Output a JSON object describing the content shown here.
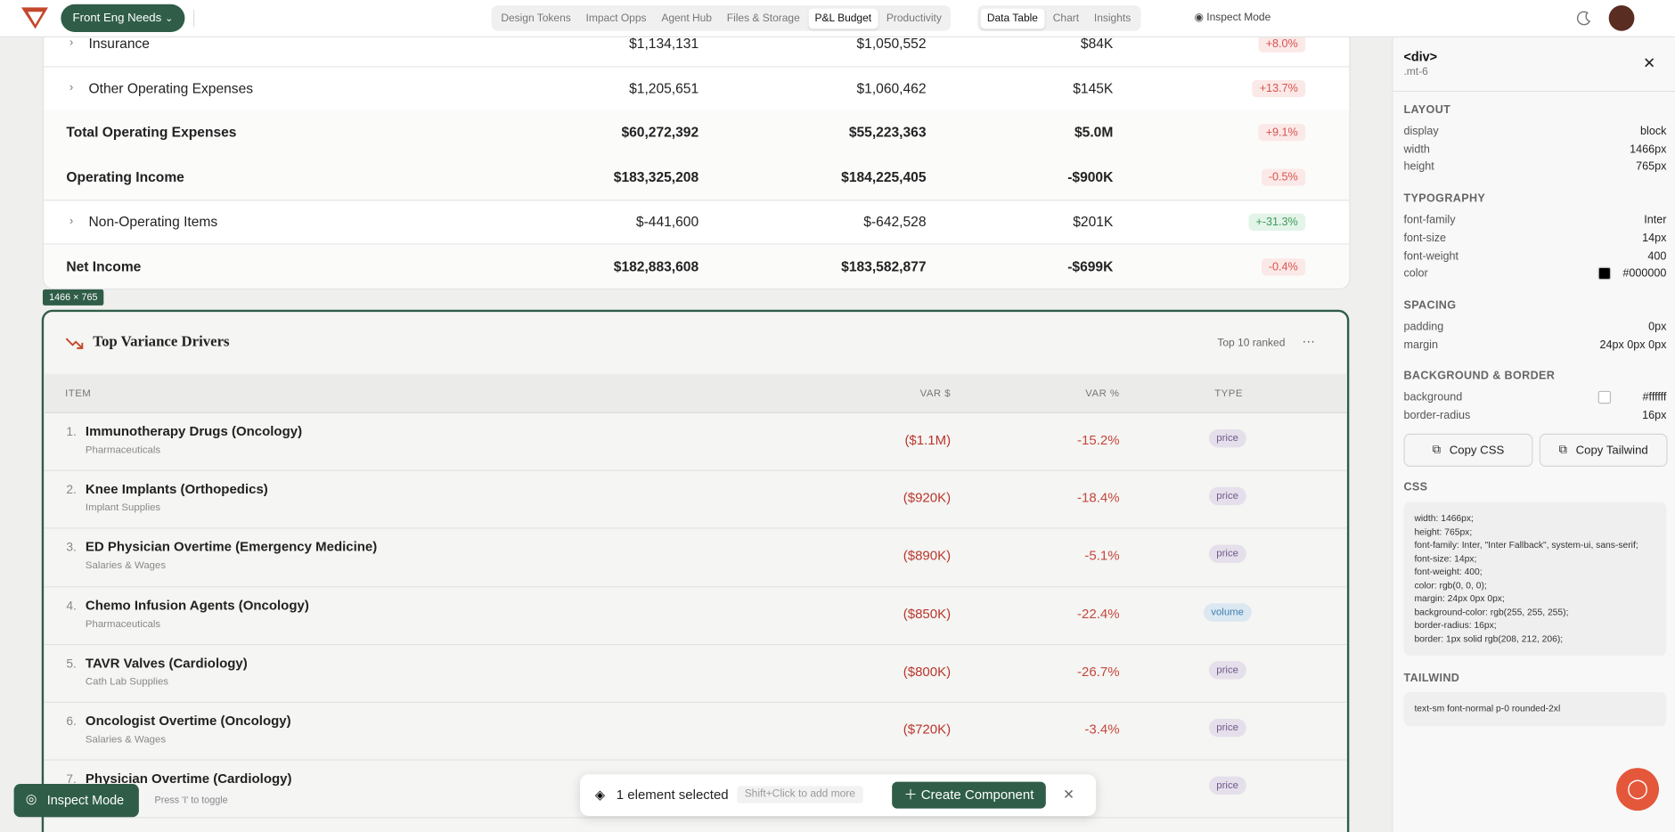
{
  "nav": {
    "brand": "Front Eng Needs",
    "tabs": [
      "Design Tokens",
      "Impact Opps",
      "Agent Hub",
      "Files & Storage",
      "P&L Budget",
      "Productivity"
    ],
    "active_tab": 4,
    "views": [
      "Data Table",
      "Chart",
      "Insights"
    ],
    "active_view": 0,
    "inspect": "Inspect Mode"
  },
  "pl_table": {
    "rows": [
      {
        "label": "Insurance",
        "actual": "$1,134,131",
        "budget": "$1,050,552",
        "variance": "$84K",
        "change": "+8.0%",
        "expandable": true,
        "total": false,
        "badge_color": "#d9534f",
        "badge_bg": "#fbe9e7"
      },
      {
        "label": "Other Operating Expenses",
        "actual": "$1,205,651",
        "budget": "$1,060,462",
        "variance": "$145K",
        "change": "+13.7%",
        "expandable": true,
        "total": false,
        "badge_color": "#d9534f",
        "badge_bg": "#fbe9e7"
      },
      {
        "label": "Total Operating Expenses",
        "actual": "$60,272,392",
        "budget": "$55,223,363",
        "variance": "$5.0M",
        "change": "+9.1%",
        "expandable": false,
        "total": true,
        "badge_color": "#d9534f",
        "badge_bg": "#fbe9e7"
      },
      {
        "label": "Operating Income",
        "actual": "$183,325,208",
        "budget": "$184,225,405",
        "variance": "-$900K",
        "change": "-0.5%",
        "expandable": false,
        "total": true,
        "badge_color": "#d9534f",
        "badge_bg": "#fbe9e7"
      },
      {
        "label": "Non-Operating Items",
        "actual": "$-441,600",
        "budget": "$-642,528",
        "variance": "$201K",
        "change": "+-31.3%",
        "expandable": true,
        "total": false,
        "badge_color": "#3f9a5f",
        "badge_bg": "#e3f4e8"
      },
      {
        "label": "Net Income",
        "actual": "$182,883,608",
        "budget": "$183,582,877",
        "variance": "-$699K",
        "change": "-0.4%",
        "expandable": false,
        "total": true,
        "badge_color": "#d9534f",
        "badge_bg": "#fbe9e7"
      }
    ]
  },
  "size_badge": "1466 × 765",
  "drivers": {
    "title": "Top Variance Drivers",
    "badge": "Top 10 ranked",
    "columns": [
      "ITEM",
      "VAR $",
      "VAR %",
      "TYPE"
    ],
    "rows": [
      {
        "rank": "1.",
        "item": "Immunotherapy Drugs (Oncology)",
        "category": "Pharmaceuticals",
        "var": "($1.1M)",
        "pct": "-15.2%",
        "type": "price",
        "type_color": "#6e5a8c",
        "type_bg": "#e5dfeb"
      },
      {
        "rank": "2.",
        "item": "Knee Implants (Orthopedics)",
        "category": "Implant Supplies",
        "var": "($920K)",
        "pct": "-18.4%",
        "type": "price",
        "type_color": "#6e5a8c",
        "type_bg": "#e5dfeb"
      },
      {
        "rank": "3.",
        "item": "ED Physician Overtime (Emergency Medicine)",
        "category": "Salaries & Wages",
        "var": "($890K)",
        "pct": "-5.1%",
        "type": "price",
        "type_color": "#6e5a8c",
        "type_bg": "#e5dfeb"
      },
      {
        "rank": "4.",
        "item": "Chemo Infusion Agents (Oncology)",
        "category": "Pharmaceuticals",
        "var": "($850K)",
        "pct": "-22.4%",
        "type": "volume",
        "type_color": "#3f7fb0",
        "type_bg": "#dbe8f2"
      },
      {
        "rank": "5.",
        "item": "TAVR Valves (Cardiology)",
        "category": "Cath Lab Supplies",
        "var": "($800K)",
        "pct": "-26.7%",
        "type": "price",
        "type_color": "#6e5a8c",
        "type_bg": "#e5dfeb"
      },
      {
        "rank": "6.",
        "item": "Oncologist Overtime (Oncology)",
        "category": "Salaries & Wages",
        "var": "($720K)",
        "pct": "-3.4%",
        "type": "price",
        "type_color": "#6e5a8c",
        "type_bg": "#e5dfeb"
      },
      {
        "rank": "7.",
        "item": "Physician Overtime (Cardiology)",
        "type": "price",
        "type_color": "#6e5a8c",
        "type_bg": "#e5dfeb"
      }
    ]
  },
  "inspector": {
    "tag": "<div>",
    "class": ".mt-6",
    "sections": [
      {
        "title": "LAYOUT",
        "props": [
          {
            "name": "display",
            "value": "block"
          },
          {
            "name": "width",
            "value": "1466px"
          },
          {
            "name": "height",
            "value": "765px"
          }
        ]
      },
      {
        "title": "TYPOGRAPHY",
        "props": [
          {
            "name": "font-family",
            "value": "Inter"
          },
          {
            "name": "font-size",
            "value": "14px"
          },
          {
            "name": "font-weight",
            "value": "400"
          },
          {
            "name": "color",
            "value": "#000000",
            "swatch": true
          }
        ]
      },
      {
        "title": "SPACING",
        "props": [
          {
            "name": "padding",
            "value": "0px"
          },
          {
            "name": "margin",
            "value": "24px 0px 0px"
          }
        ]
      },
      {
        "title": "BACKGROUND & BORDER",
        "props": [
          {
            "name": "background",
            "value": "#ffffff",
            "swatch": true
          },
          {
            "name": "border-radius",
            "value": "16px"
          }
        ]
      }
    ],
    "copy_css": "Copy CSS",
    "copy_tailwind": "Copy Tailwind",
    "css_title": "CSS",
    "css_lines": [
      "width: 1466px;",
      "height: 765px;",
      "font-family: Inter, \"Inter Fallback\", system-ui, sans-serif;",
      "font-size: 14px;",
      "font-weight: 400;",
      "color: rgb(0, 0, 0);",
      "margin: 24px 0px 0px;",
      "background-color: rgb(255, 255, 255);",
      "border-radius: 16px;",
      "border: 1px solid rgb(208, 212, 206);"
    ],
    "tailwind_title": "TAILWIND",
    "tailwind": "text-sm font-normal p-0 rounded-2xl"
  },
  "toolbar": {
    "selected": "1 element selected",
    "hint": "Shift+Click to add more",
    "create": "Create Component"
  },
  "inspect_pill": {
    "label": "Inspect Mode",
    "hint": "Press 'I' to toggle"
  }
}
